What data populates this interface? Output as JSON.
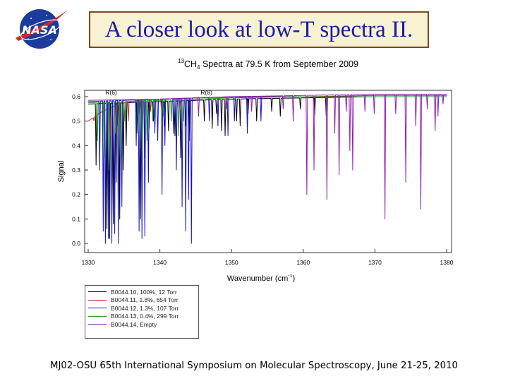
{
  "slide": {
    "title": "A closer look at low-T spectra II.",
    "footer": "MJ02-OSU 65th International Symposium on Molecular Spectroscopy, June 21-25, 2010",
    "logo_text": "NASA"
  },
  "colors": {
    "title_text": "#1a1aa8",
    "title_box_fill": "#f6f2d2",
    "title_box_border": "#7b4a1f"
  },
  "chart_data": {
    "type": "line",
    "title_mass": "13",
    "title_molecule": "CH",
    "title_subscript": "4",
    "title_rest": " Spectra at 79.5 K from September 2009",
    "xlabel": "Wavenumber (cm",
    "xlabel_exp": "-1",
    "xlabel_close": ")",
    "ylabel": "Signal",
    "xlim": [
      1330,
      1380
    ],
    "ylim": [
      0,
      0.6
    ],
    "x_ticks": [
      "1330",
      "1340",
      "1350",
      "1360",
      "1370",
      "1380"
    ],
    "y_ticks": [
      "0.0",
      "0.1",
      "0.2",
      "0.3",
      "0.4",
      "0.5",
      "0.6"
    ],
    "annotations": [
      {
        "text": "R(6)",
        "x": 1333.2
      },
      {
        "text": "R(8)",
        "x": 1346.5
      }
    ],
    "legend_position": "bottom-left",
    "series": [
      {
        "name": "B0044.10, 100%, 12 Torr",
        "color": "#000000",
        "baseline": [
          [
            1330,
            0.57
          ],
          [
            1335,
            0.575
          ],
          [
            1340,
            0.58
          ],
          [
            1345,
            0.585
          ],
          [
            1350,
            0.59
          ],
          [
            1360,
            0.595
          ],
          [
            1370,
            0.6
          ],
          [
            1380,
            0.6
          ]
        ],
        "lines": [
          [
            1331.1,
            0.32
          ],
          [
            1332.6,
            0.06
          ],
          [
            1333.0,
            0.02
          ],
          [
            1333.5,
            0.08
          ],
          [
            1333.9,
            0.25
          ],
          [
            1334.4,
            0.1
          ],
          [
            1334.9,
            0.3
          ],
          [
            1335.3,
            0.4
          ],
          [
            1336.8,
            0.45
          ],
          [
            1337.3,
            0.1
          ],
          [
            1337.9,
            0.35
          ],
          [
            1338.5,
            0.47
          ],
          [
            1339.1,
            0.5
          ],
          [
            1340.6,
            0.48
          ],
          [
            1341.2,
            0.46
          ],
          [
            1342.1,
            0.44
          ],
          [
            1342.9,
            0.35
          ],
          [
            1343.6,
            0.48
          ],
          [
            1344.1,
            0.42
          ],
          [
            1346.2,
            0.5
          ],
          [
            1347.3,
            0.47
          ],
          [
            1347.9,
            0.53
          ],
          [
            1348.6,
            0.46
          ],
          [
            1349.1,
            0.44
          ],
          [
            1350.7,
            0.5
          ],
          [
            1351.2,
            0.48
          ],
          [
            1352.3,
            0.53
          ],
          [
            1353.5,
            0.5
          ],
          [
            1355.6,
            0.54
          ],
          [
            1356.8,
            0.52
          ],
          [
            1359.6,
            0.55
          ],
          [
            1361.6,
            0.52
          ],
          [
            1363.2,
            0.52
          ]
        ]
      },
      {
        "name": "B0044.11, 1.8%, 654 Torr",
        "color": "#e02020",
        "baseline": [
          [
            1330,
            0.5
          ],
          [
            1331,
            0.52
          ],
          [
            1332,
            0.54
          ],
          [
            1333.5,
            0.56
          ],
          [
            1335,
            0.575
          ],
          [
            1337,
            0.585
          ],
          [
            1340,
            0.59
          ],
          [
            1345,
            0.595
          ],
          [
            1350,
            0.6
          ],
          [
            1360,
            0.6
          ],
          [
            1370,
            0.605
          ],
          [
            1380,
            0.605
          ]
        ],
        "lines": [
          [
            1330.8,
            0.5
          ],
          [
            1333.1,
            0.44
          ],
          [
            1334.1,
            0.48
          ],
          [
            1335.6,
            0.5
          ],
          [
            1337.2,
            0.52
          ],
          [
            1338.7,
            0.54
          ],
          [
            1340.2,
            0.55
          ],
          [
            1342.5,
            0.56
          ],
          [
            1344.2,
            0.56
          ]
        ]
      },
      {
        "name": "B0044.12, 1.3%, 107 Torr",
        "color": "#1010d0",
        "baseline": [
          [
            1330,
            0.58
          ],
          [
            1335,
            0.585
          ],
          [
            1340,
            0.59
          ],
          [
            1345,
            0.595
          ],
          [
            1350,
            0.598
          ],
          [
            1360,
            0.6
          ],
          [
            1370,
            0.6
          ],
          [
            1380,
            0.6
          ]
        ],
        "lines": [
          [
            1331.6,
            0.3
          ],
          [
            1332.1,
            0.05
          ],
          [
            1332.4,
            0.0
          ],
          [
            1332.8,
            0.02
          ],
          [
            1333.3,
            0.0
          ],
          [
            1333.7,
            0.04
          ],
          [
            1334.2,
            0.0
          ],
          [
            1334.7,
            0.15
          ],
          [
            1336.7,
            0.4
          ],
          [
            1337.1,
            0.05
          ],
          [
            1337.5,
            0.02
          ],
          [
            1337.9,
            0.03
          ],
          [
            1338.4,
            0.25
          ],
          [
            1339.3,
            0.45
          ],
          [
            1339.7,
            0.42
          ],
          [
            1340.3,
            0.2
          ],
          [
            1340.7,
            0.4
          ],
          [
            1341.9,
            0.45
          ],
          [
            1342.3,
            0.3
          ],
          [
            1343.1,
            0.15
          ],
          [
            1343.6,
            0.05
          ],
          [
            1344.0,
            0.18
          ],
          [
            1344.4,
            0.0
          ],
          [
            1346.9,
            0.5
          ],
          [
            1348.1,
            0.48
          ],
          [
            1349.5,
            0.44
          ],
          [
            1350.4,
            0.5
          ],
          [
            1352.2,
            0.45
          ],
          [
            1354.1,
            0.5
          ]
        ]
      },
      {
        "name": "B0044.13, 0.4%, 299 Torr",
        "color": "#20a020",
        "baseline": [
          [
            1330,
            0.575
          ],
          [
            1335,
            0.58
          ],
          [
            1340,
            0.585
          ],
          [
            1345,
            0.59
          ],
          [
            1350,
            0.595
          ],
          [
            1360,
            0.6
          ],
          [
            1380,
            0.6
          ]
        ],
        "lines": [
          [
            1331.3,
            0.42
          ],
          [
            1332.2,
            0.35
          ],
          [
            1332.9,
            0.3
          ],
          [
            1333.8,
            0.45
          ],
          [
            1334.5,
            0.36
          ],
          [
            1335.1,
            0.5
          ],
          [
            1337.0,
            0.46
          ],
          [
            1337.6,
            0.38
          ],
          [
            1338.2,
            0.42
          ],
          [
            1339.0,
            0.5
          ],
          [
            1340.5,
            0.52
          ],
          [
            1341.6,
            0.5
          ],
          [
            1342.6,
            0.44
          ],
          [
            1343.3,
            0.5
          ]
        ]
      },
      {
        "name": "B0044.14, Empty",
        "color": "#9020b0",
        "baseline": [
          [
            1330,
            0.585
          ],
          [
            1340,
            0.59
          ],
          [
            1350,
            0.6
          ],
          [
            1360,
            0.605
          ],
          [
            1370,
            0.61
          ],
          [
            1380,
            0.61
          ]
        ],
        "lines": [
          [
            1342.8,
            0.55
          ],
          [
            1345.4,
            0.52
          ],
          [
            1349.3,
            0.55
          ],
          [
            1352.8,
            0.54
          ],
          [
            1357.2,
            0.55
          ],
          [
            1358.6,
            0.5
          ],
          [
            1360.5,
            0.2
          ],
          [
            1361.5,
            0.3
          ],
          [
            1363.3,
            0.18
          ],
          [
            1364.4,
            0.45
          ],
          [
            1365.0,
            0.28
          ],
          [
            1366.0,
            0.54
          ],
          [
            1366.5,
            0.38
          ],
          [
            1366.9,
            0.3
          ],
          [
            1368.6,
            0.54
          ],
          [
            1369.9,
            0.53
          ],
          [
            1371.4,
            0.1
          ],
          [
            1372.9,
            0.53
          ],
          [
            1374.3,
            0.25
          ],
          [
            1375.7,
            0.48
          ],
          [
            1376.4,
            0.14
          ],
          [
            1377.3,
            0.55
          ],
          [
            1378.4,
            0.46
          ],
          [
            1378.8,
            0.52
          ],
          [
            1379.5,
            0.57
          ]
        ]
      }
    ]
  }
}
